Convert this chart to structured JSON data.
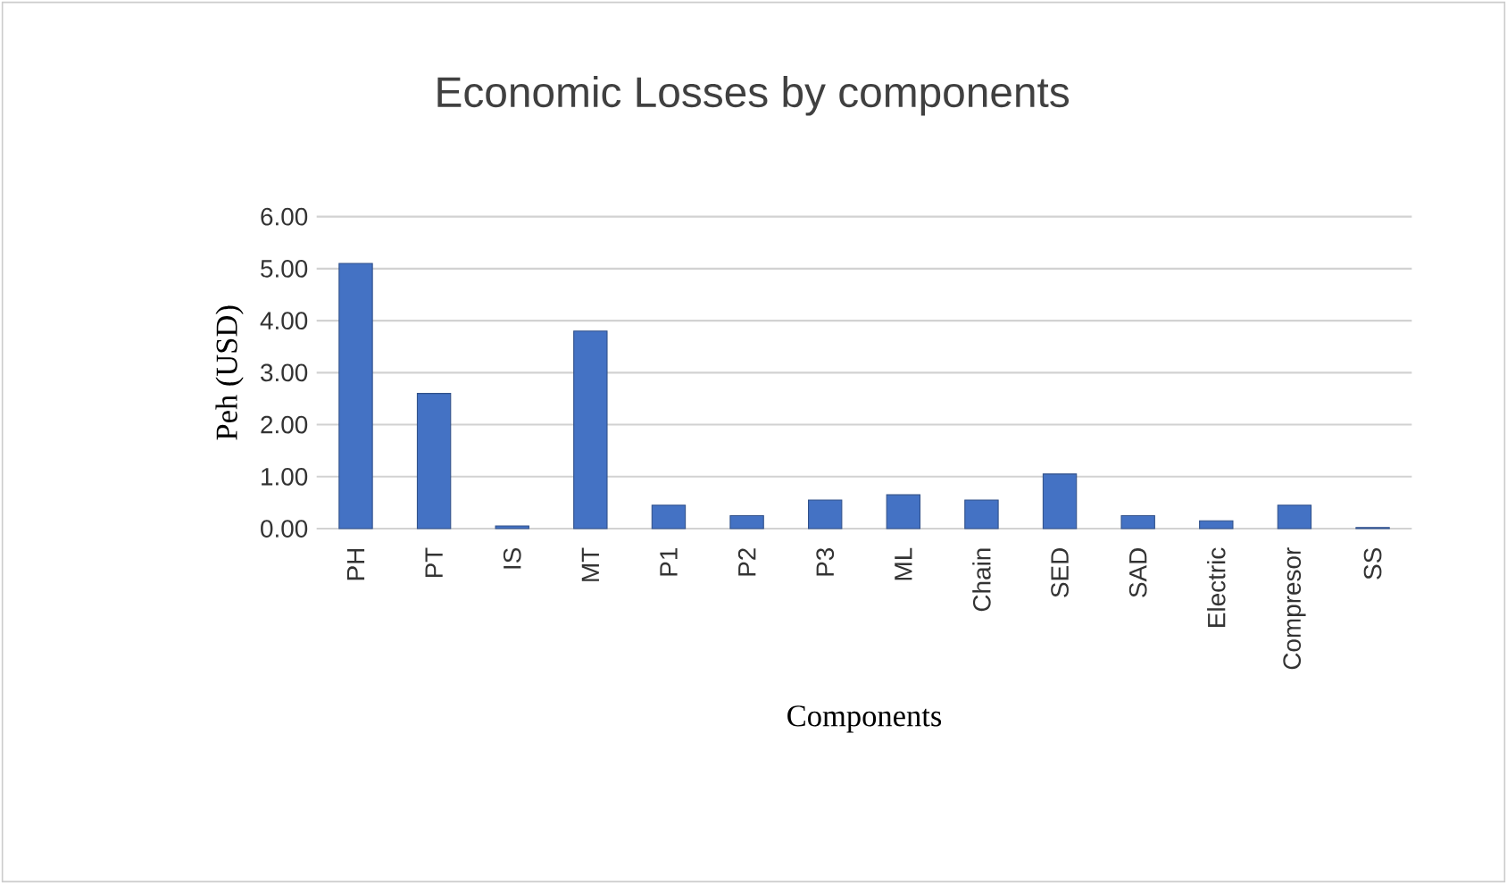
{
  "chart_data": {
    "type": "bar",
    "title": "Economic Losses by components",
    "xlabel": "Components",
    "ylabel": "Peh (USD)",
    "categories": [
      "PH",
      "PT",
      "IS",
      "MT",
      "P1",
      "P2",
      "P3",
      "ML",
      "Chain",
      "SED",
      "SAD",
      "Electric",
      "Compresor",
      "SS"
    ],
    "values": [
      5.1,
      2.6,
      0.05,
      3.8,
      0.45,
      0.25,
      0.55,
      0.65,
      0.55,
      1.05,
      0.25,
      0.15,
      0.45,
      0.02
    ],
    "color": "#4472c4",
    "ylim": [
      0,
      6
    ],
    "yticks": [
      {
        "value": 0,
        "label": "0.00"
      },
      {
        "value": 1,
        "label": "1.00"
      },
      {
        "value": 2,
        "label": "2.00"
      },
      {
        "value": 3,
        "label": "3.00"
      },
      {
        "value": 4,
        "label": "4.00"
      },
      {
        "value": 5,
        "label": "5.00"
      },
      {
        "value": 6,
        "label": "6.00"
      }
    ],
    "grid": "y"
  }
}
